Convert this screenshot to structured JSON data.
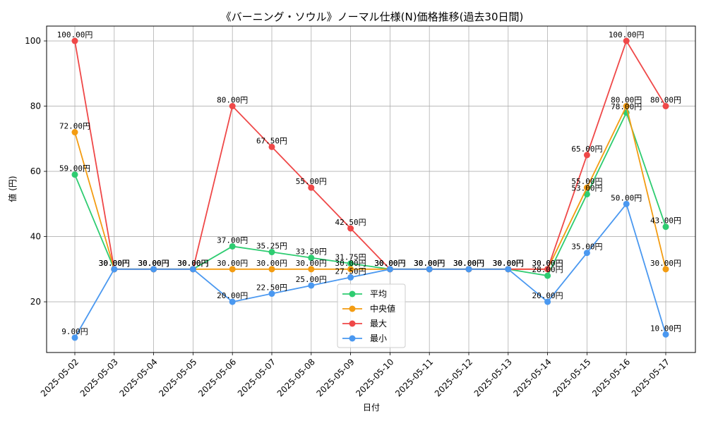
{
  "chart_data": {
    "type": "line",
    "title": "《バーニング・ソウル》ノーマル仕様(N)価格推移(過去30日間)",
    "xlabel": "日付",
    "ylabel": "値 (円)",
    "ylim": [
      4.45,
      104.55
    ],
    "yticks": [
      20,
      40,
      60,
      80,
      100
    ],
    "grid": true,
    "legend_position": "lower-center",
    "label_suffix": "円",
    "categories": [
      "2025-05-02",
      "2025-05-03",
      "2025-05-04",
      "2025-05-05",
      "2025-05-06",
      "2025-05-07",
      "2025-05-08",
      "2025-05-09",
      "2025-05-10",
      "2025-05-11",
      "2025-05-12",
      "2025-05-13",
      "2025-05-14",
      "2025-05-15",
      "2025-05-16",
      "2025-05-17"
    ],
    "series": [
      {
        "name": "平均",
        "color": "#2ecc71",
        "values": [
          59.0,
          30.0,
          30.0,
          30.0,
          37.0,
          35.25,
          33.5,
          31.75,
          30.0,
          30.0,
          30.0,
          30.0,
          28.0,
          53.0,
          78.0,
          43.0
        ]
      },
      {
        "name": "中央値",
        "color": "#f39c12",
        "values": [
          72.0,
          30.0,
          30.0,
          30.0,
          30.0,
          30.0,
          30.0,
          30.0,
          30.0,
          30.0,
          30.0,
          30.0,
          30.0,
          55.0,
          80.0,
          30.0
        ]
      },
      {
        "name": "最大",
        "color": "#ef4848",
        "values": [
          100.0,
          30.0,
          30.0,
          30.0,
          80.0,
          67.5,
          55.0,
          42.5,
          30.0,
          30.0,
          30.0,
          30.0,
          30.0,
          65.0,
          100.0,
          80.0
        ]
      },
      {
        "name": "最小",
        "color": "#4a98f0",
        "values": [
          9.0,
          30.0,
          30.0,
          30.0,
          20.0,
          22.5,
          25.0,
          27.5,
          30.0,
          30.0,
          30.0,
          30.0,
          20.0,
          35.0,
          50.0,
          10.0
        ]
      }
    ]
  }
}
